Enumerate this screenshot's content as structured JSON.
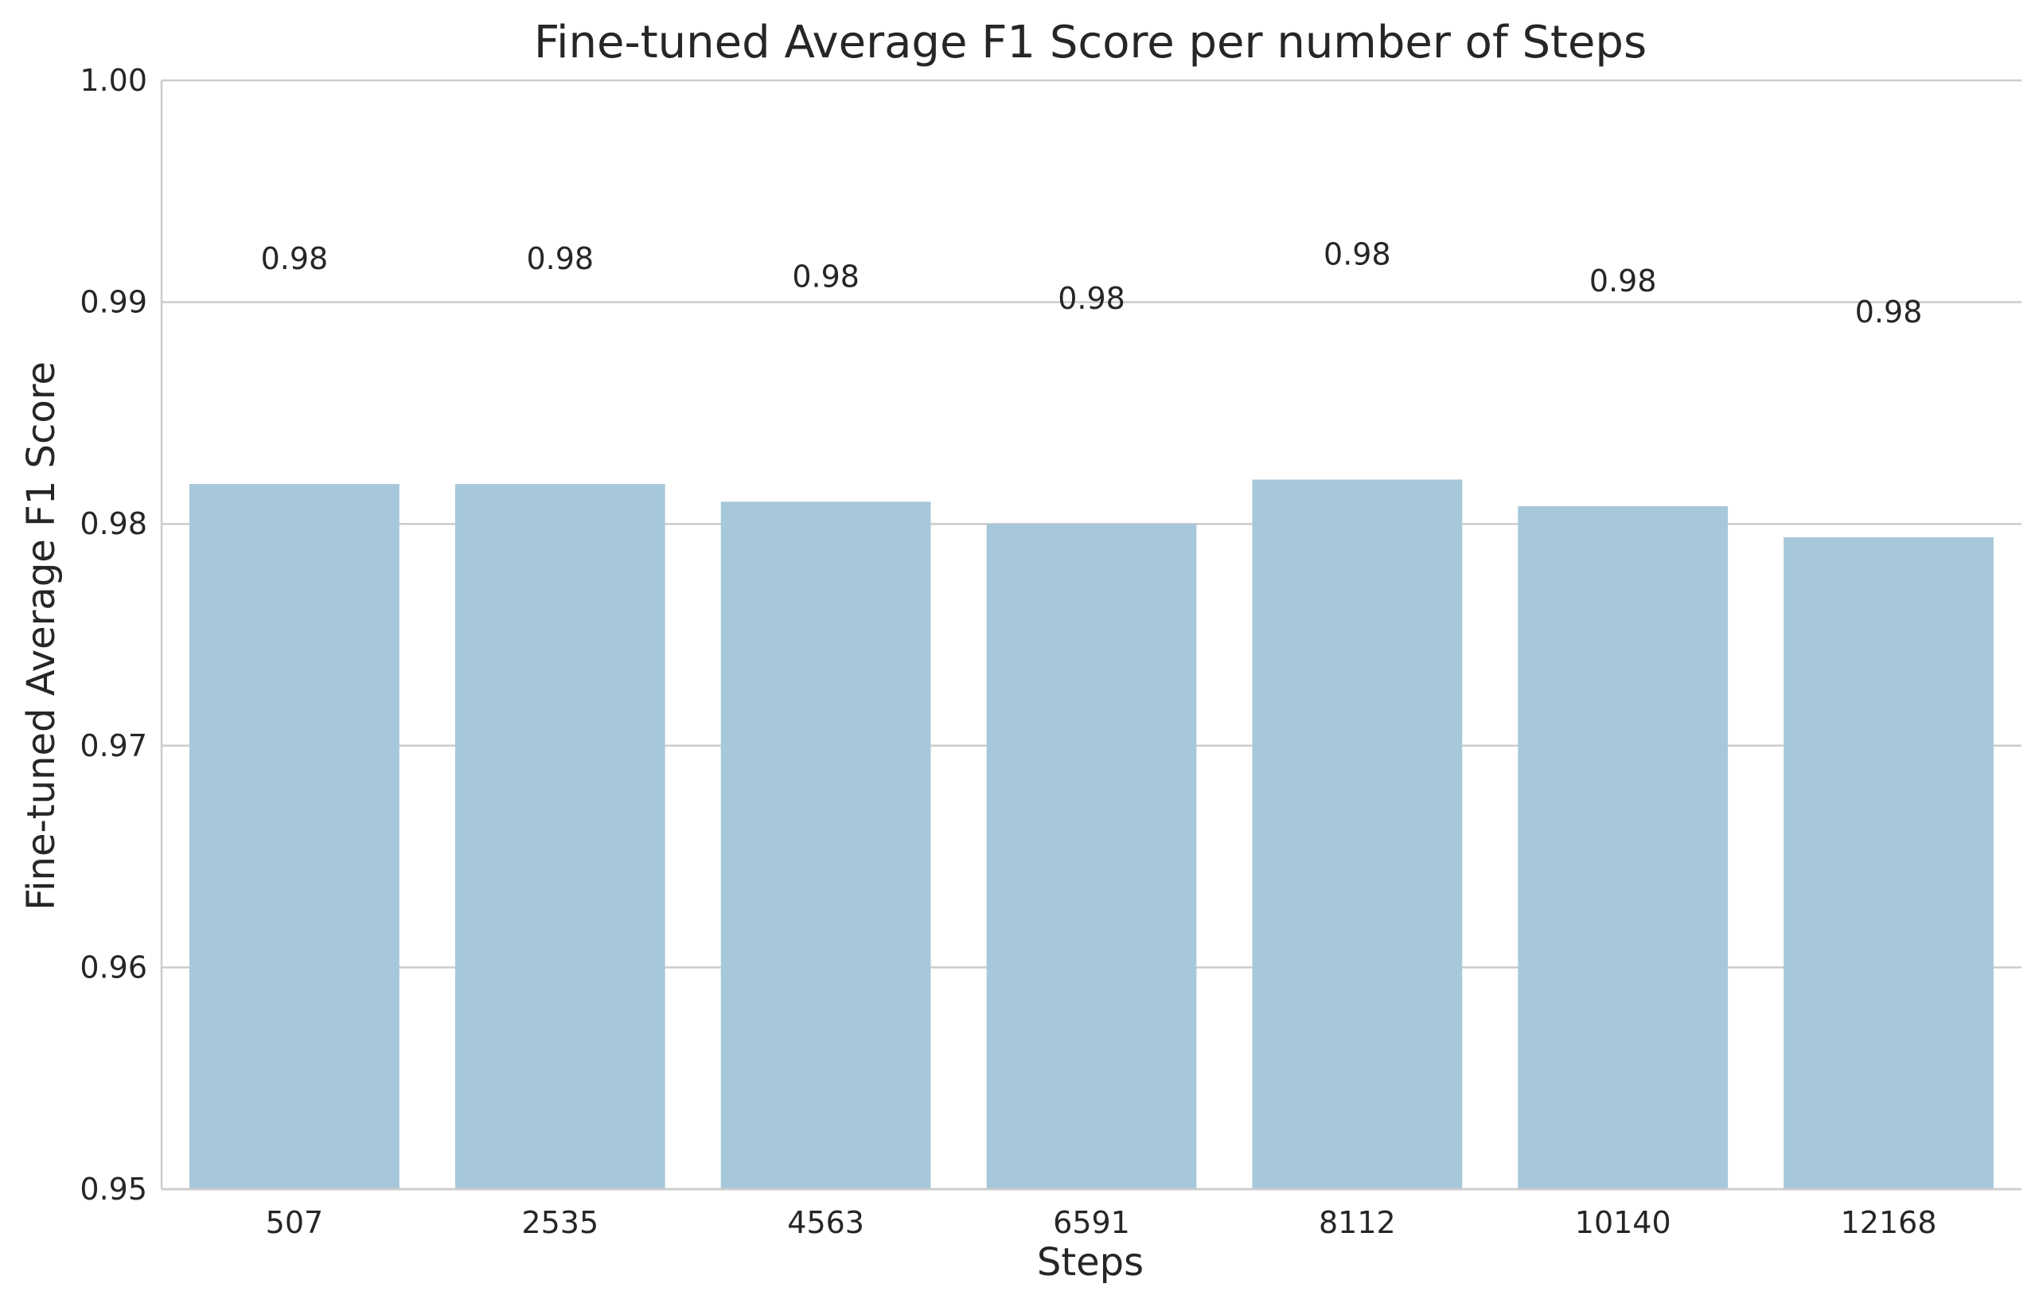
{
  "chart_data": {
    "type": "bar",
    "title": "Fine-tuned Average F1 Score per number of Steps",
    "xlabel": "Steps",
    "ylabel": "Fine-tuned Average F1 Score",
    "categories": [
      "507",
      "2535",
      "4563",
      "6591",
      "8112",
      "10140",
      "12168"
    ],
    "values": [
      0.9818,
      0.9818,
      0.981,
      0.98,
      0.982,
      0.9808,
      0.9794
    ],
    "data_labels": [
      "0.98",
      "0.98",
      "0.98",
      "0.98",
      "0.98",
      "0.98",
      "0.98"
    ],
    "ylim": [
      0.95,
      1.0
    ],
    "yticks": [
      0.95,
      0.96,
      0.97,
      0.98,
      0.99,
      1.0
    ],
    "ytick_labels": [
      "0.95",
      "0.96",
      "0.97",
      "0.98",
      "0.99",
      "1.00"
    ],
    "grid": true,
    "bar_color": "#a6c8da",
    "grid_color": "#cccccc"
  }
}
